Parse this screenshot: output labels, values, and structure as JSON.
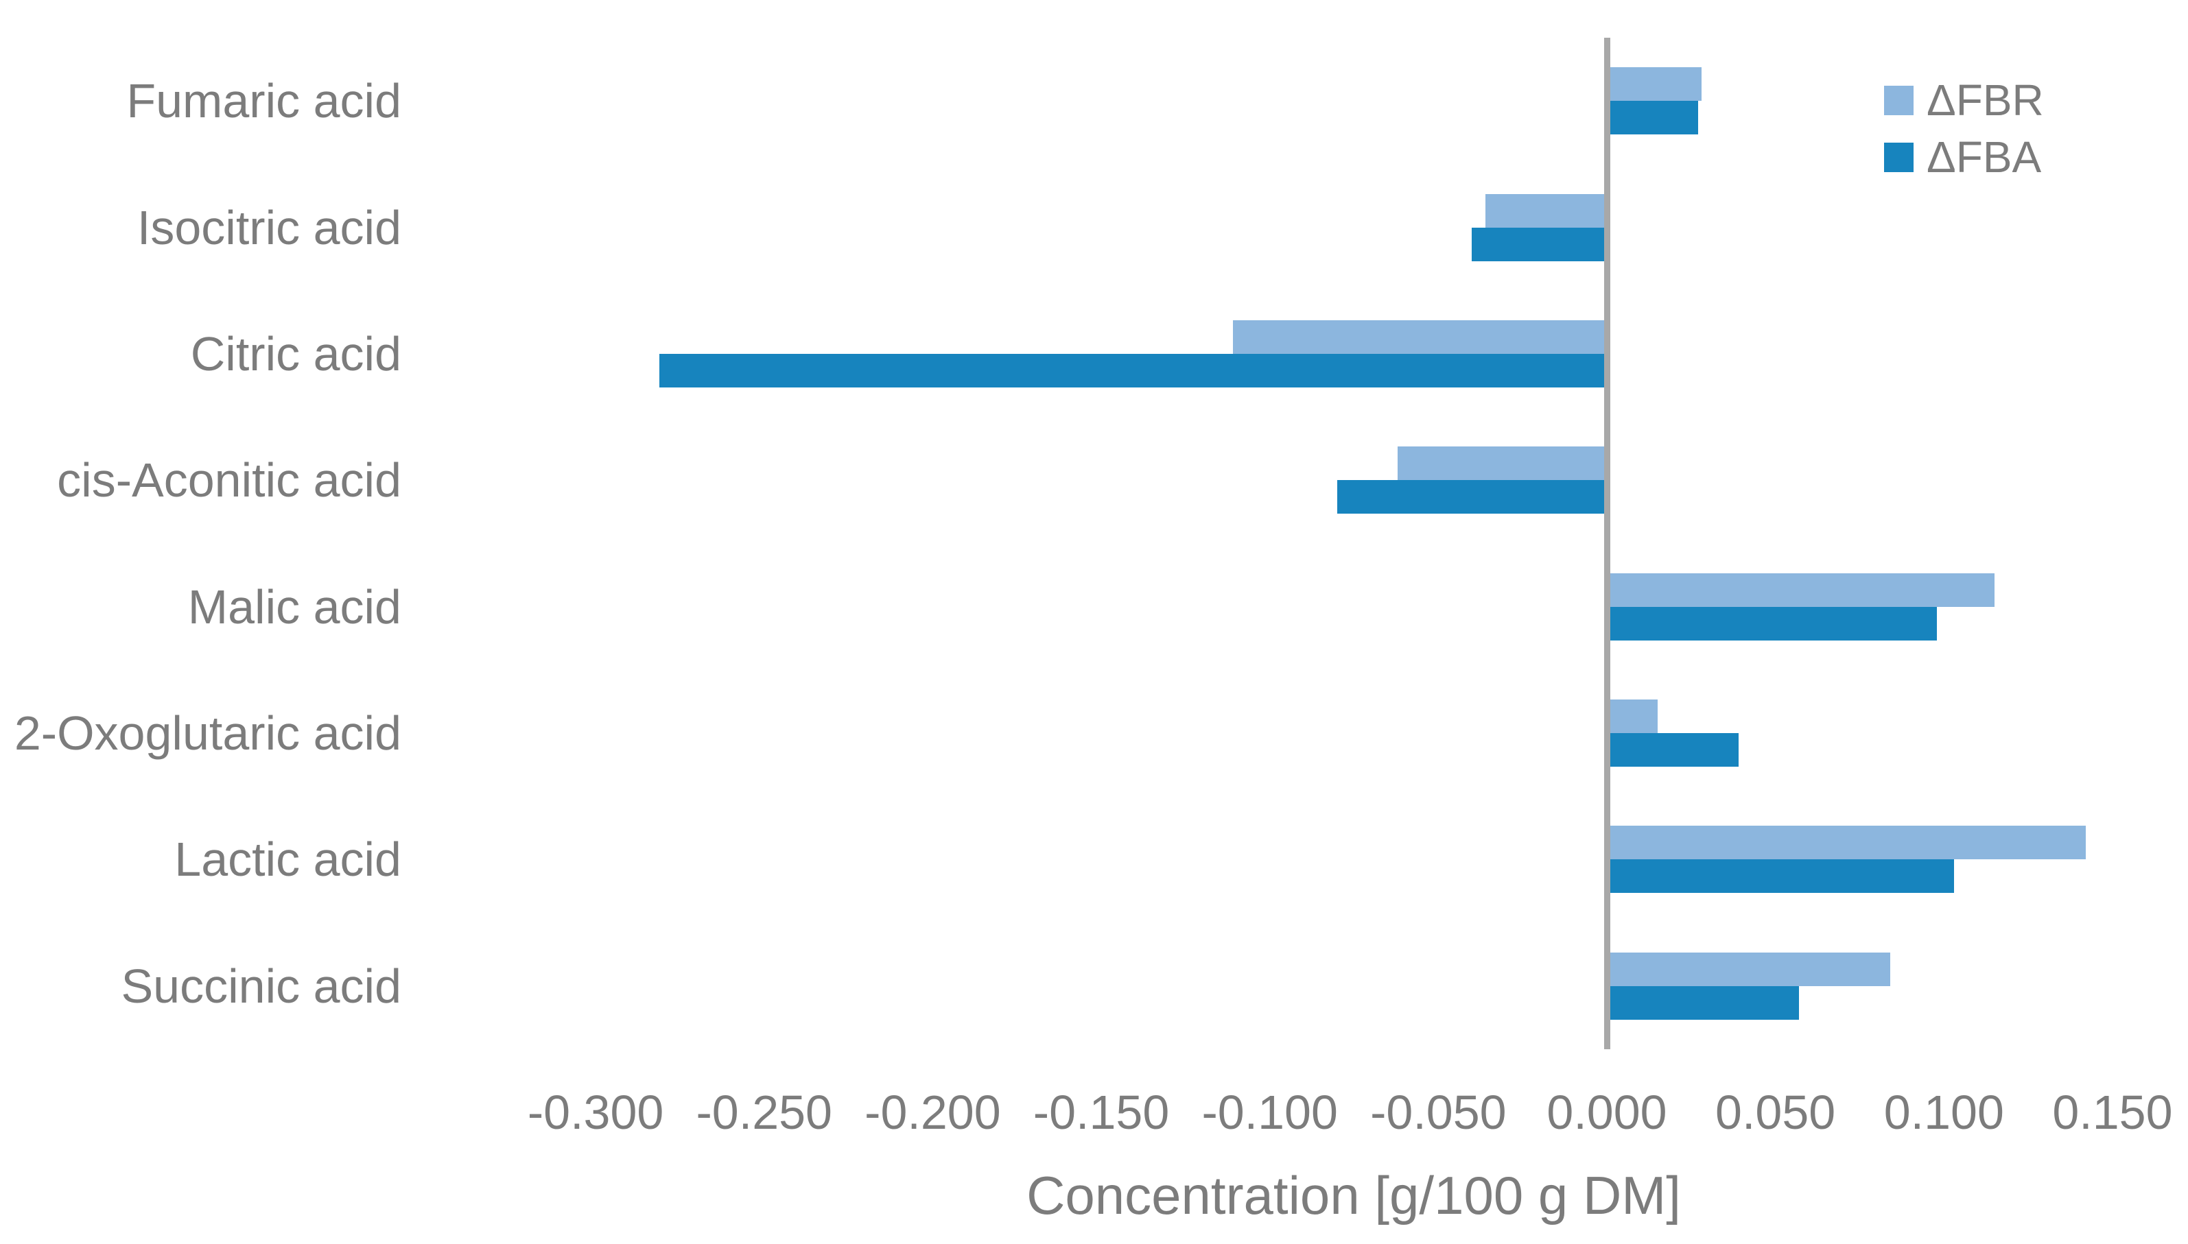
{
  "chart_data": {
    "type": "bar",
    "orientation": "horizontal",
    "xlabel": "Concentration [g/100 g DM]",
    "categories": [
      "Fumaric acid",
      "Isocitric acid",
      "Citric acid",
      "cis-Aconitic acid",
      "Malic acid",
      "2-Oxoglutaric acid",
      "Lactic acid",
      "Succinic acid"
    ],
    "series": [
      {
        "name": "ΔFBR",
        "color": "#8CB6DE",
        "values": [
          0.028,
          -0.036,
          -0.111,
          -0.062,
          0.115,
          0.015,
          0.142,
          0.084
        ]
      },
      {
        "name": "ΔFBA",
        "color": "#1784BE",
        "values": [
          0.027,
          -0.04,
          -0.281,
          -0.08,
          0.098,
          0.039,
          0.103,
          0.057
        ]
      }
    ],
    "xticks": [
      {
        "value": -0.3,
        "label": "-0.300"
      },
      {
        "value": -0.25,
        "label": "-0.250"
      },
      {
        "value": -0.2,
        "label": "-0.200"
      },
      {
        "value": -0.15,
        "label": "-0.150"
      },
      {
        "value": -0.1,
        "label": "-0.100"
      },
      {
        "value": -0.05,
        "label": "-0.050"
      },
      {
        "value": 0.0,
        "label": "0.000"
      },
      {
        "value": 0.05,
        "label": "0.050"
      },
      {
        "value": 0.1,
        "label": "0.100"
      },
      {
        "value": 0.15,
        "label": "0.150"
      }
    ],
    "xlim": [
      -0.325,
      0.172
    ],
    "grid": false,
    "legend_position": "top-right",
    "zero_line": true,
    "axis_line_color": "#A8A8A8",
    "text_color": "#7C7C7C"
  }
}
